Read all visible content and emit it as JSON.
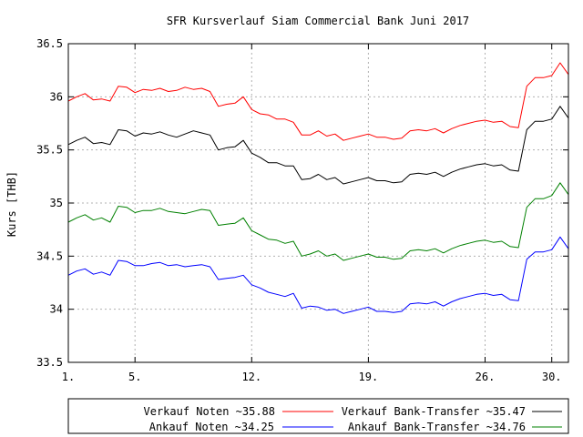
{
  "chart_data": {
    "type": "line",
    "title": "SFR Kursverlauf Siam Commercial Bank Juni 2017",
    "ylabel": "Kurs [THB]",
    "xlabel": "",
    "ylim": [
      33.5,
      36.5
    ],
    "xlim": [
      1,
      31
    ],
    "grid": true,
    "legend_position": "bottom",
    "x_ticks": [
      {
        "value": 1,
        "label": "1."
      },
      {
        "value": 5,
        "label": "5."
      },
      {
        "value": 12,
        "label": "12."
      },
      {
        "value": 19,
        "label": "19."
      },
      {
        "value": 26,
        "label": "26."
      },
      {
        "value": 30,
        "label": "30."
      }
    ],
    "y_ticks": [
      {
        "value": 33.5,
        "label": "33.5"
      },
      {
        "value": 34,
        "label": "34"
      },
      {
        "value": 34.5,
        "label": "34.5"
      },
      {
        "value": 35,
        "label": "35"
      },
      {
        "value": 35.5,
        "label": "35.5"
      },
      {
        "value": 36,
        "label": "36"
      },
      {
        "value": 36.5,
        "label": "36.5"
      }
    ],
    "series": [
      {
        "name": "Verkauf Noten ~35.88",
        "color": "#ff0000",
        "x": [
          1,
          1.5,
          2,
          2.5,
          3,
          3.5,
          4,
          4.5,
          5,
          5.5,
          6,
          6.5,
          7,
          7.5,
          8,
          8.5,
          9,
          9.5,
          10,
          10.5,
          11,
          11.5,
          12,
          12.5,
          13,
          13.5,
          14,
          14.5,
          15,
          15.5,
          16,
          16.5,
          17,
          17.5,
          18,
          18.5,
          19,
          19.5,
          20,
          20.5,
          21,
          21.5,
          22,
          22.5,
          23,
          23.5,
          24,
          24.5,
          25,
          25.5,
          26,
          26.5,
          27,
          27.5,
          28,
          28.5,
          29,
          29.5,
          30,
          30.5,
          31
        ],
        "values": [
          35.96,
          36.0,
          36.03,
          35.97,
          35.98,
          35.96,
          36.1,
          36.09,
          36.04,
          36.07,
          36.06,
          36.08,
          36.05,
          36.06,
          36.09,
          36.07,
          36.08,
          36.05,
          35.91,
          35.93,
          35.94,
          36.0,
          35.88,
          35.84,
          35.83,
          35.79,
          35.79,
          35.76,
          35.64,
          35.64,
          35.68,
          35.63,
          35.65,
          35.59,
          35.61,
          35.63,
          35.65,
          35.62,
          35.62,
          35.6,
          35.61,
          35.68,
          35.69,
          35.68,
          35.7,
          35.66,
          35.7,
          35.73,
          35.75,
          35.77,
          35.78,
          35.76,
          35.77,
          35.72,
          35.71,
          36.1,
          36.18,
          36.18,
          36.2,
          36.32,
          36.21
        ]
      },
      {
        "name": "Verkauf Bank-Transfer ~35.47",
        "color": "#000000",
        "x": [
          1,
          1.5,
          2,
          2.5,
          3,
          3.5,
          4,
          4.5,
          5,
          5.5,
          6,
          6.5,
          7,
          7.5,
          8,
          8.5,
          9,
          9.5,
          10,
          10.5,
          11,
          11.5,
          12,
          12.5,
          13,
          13.5,
          14,
          14.5,
          15,
          15.5,
          16,
          16.5,
          17,
          17.5,
          18,
          18.5,
          19,
          19.5,
          20,
          20.5,
          21,
          21.5,
          22,
          22.5,
          23,
          23.5,
          24,
          24.5,
          25,
          25.5,
          26,
          26.5,
          27,
          27.5,
          28,
          28.5,
          29,
          29.5,
          30,
          30.5,
          31
        ],
        "values": [
          35.55,
          35.59,
          35.62,
          35.56,
          35.57,
          35.55,
          35.69,
          35.68,
          35.63,
          35.66,
          35.65,
          35.67,
          35.64,
          35.62,
          35.65,
          35.68,
          35.66,
          35.64,
          35.5,
          35.52,
          35.53,
          35.59,
          35.47,
          35.43,
          35.38,
          35.38,
          35.35,
          35.35,
          35.22,
          35.23,
          35.27,
          35.22,
          35.24,
          35.18,
          35.2,
          35.22,
          35.24,
          35.21,
          35.21,
          35.19,
          35.2,
          35.27,
          35.28,
          35.27,
          35.29,
          35.25,
          35.29,
          35.32,
          35.34,
          35.36,
          35.37,
          35.35,
          35.36,
          35.31,
          35.3,
          35.69,
          35.77,
          35.77,
          35.79,
          35.91,
          35.8
        ]
      },
      {
        "name": "Ankauf Noten ~34.25",
        "color": "#0000ff",
        "x": [
          1,
          1.5,
          2,
          2.5,
          3,
          3.5,
          4,
          4.5,
          5,
          5.5,
          6,
          6.5,
          7,
          7.5,
          8,
          8.5,
          9,
          9.5,
          10,
          10.5,
          11,
          11.5,
          12,
          12.5,
          13,
          13.5,
          14,
          14.5,
          15,
          15.5,
          16,
          16.5,
          17,
          17.5,
          18,
          18.5,
          19,
          19.5,
          20,
          20.5,
          21,
          21.5,
          22,
          22.5,
          23,
          23.5,
          24,
          24.5,
          25,
          25.5,
          26,
          26.5,
          27,
          27.5,
          28,
          28.5,
          29,
          29.5,
          30,
          30.5,
          31
        ],
        "values": [
          34.32,
          34.36,
          34.38,
          34.33,
          34.35,
          34.32,
          34.46,
          34.45,
          34.41,
          34.41,
          34.43,
          34.44,
          34.41,
          34.42,
          34.4,
          34.41,
          34.42,
          34.4,
          34.28,
          34.29,
          34.3,
          34.32,
          34.23,
          34.2,
          34.16,
          34.14,
          34.12,
          34.15,
          34.01,
          34.03,
          34.02,
          33.99,
          34.0,
          33.96,
          33.98,
          34.0,
          34.02,
          33.98,
          33.98,
          33.97,
          33.98,
          34.05,
          34.06,
          34.05,
          34.07,
          34.03,
          34.07,
          34.1,
          34.12,
          34.14,
          34.15,
          34.13,
          34.14,
          34.09,
          34.08,
          34.47,
          34.54,
          34.54,
          34.56,
          34.68,
          34.57
        ]
      },
      {
        "name": "Ankauf Bank-Transfer ~34.76",
        "color": "#008000",
        "x": [
          1,
          1.5,
          2,
          2.5,
          3,
          3.5,
          4,
          4.5,
          5,
          5.5,
          6,
          6.5,
          7,
          7.5,
          8,
          8.5,
          9,
          9.5,
          10,
          10.5,
          11,
          11.5,
          12,
          12.5,
          13,
          13.5,
          14,
          14.5,
          15,
          15.5,
          16,
          16.5,
          17,
          17.5,
          18,
          18.5,
          19,
          19.5,
          20,
          20.5,
          21,
          21.5,
          22,
          22.5,
          23,
          23.5,
          24,
          24.5,
          25,
          25.5,
          26,
          26.5,
          27,
          27.5,
          28,
          28.5,
          29,
          29.5,
          30,
          30.5,
          31
        ],
        "values": [
          34.82,
          34.86,
          34.89,
          34.84,
          34.86,
          34.82,
          34.97,
          34.96,
          34.91,
          34.93,
          34.93,
          34.95,
          34.92,
          34.91,
          34.9,
          34.92,
          34.94,
          34.93,
          34.79,
          34.8,
          34.81,
          34.86,
          34.74,
          34.7,
          34.66,
          34.65,
          34.62,
          34.64,
          34.5,
          34.52,
          34.55,
          34.5,
          34.52,
          34.46,
          34.48,
          34.5,
          34.52,
          34.49,
          34.49,
          34.47,
          34.48,
          34.55,
          34.56,
          34.55,
          34.57,
          34.53,
          34.57,
          34.6,
          34.62,
          34.64,
          34.65,
          34.63,
          34.64,
          34.59,
          34.58,
          34.96,
          35.04,
          35.04,
          35.07,
          35.19,
          35.08
        ]
      }
    ]
  }
}
